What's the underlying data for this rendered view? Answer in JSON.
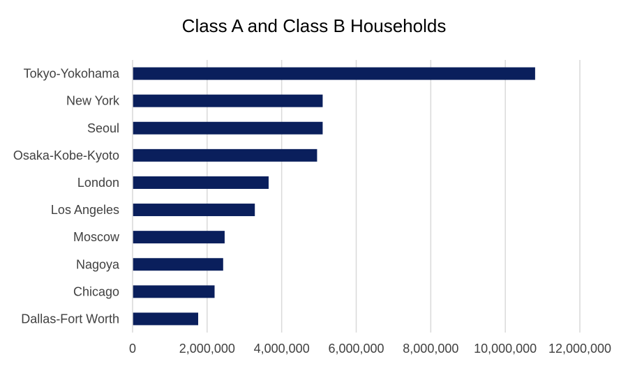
{
  "chart_data": {
    "type": "bar",
    "orientation": "horizontal",
    "title": "Class A and Class B Households",
    "xlabel": "",
    "ylabel": "",
    "categories": [
      "Tokyo-Yokohama",
      "New York",
      "Seoul",
      "Osaka-Kobe-Kyoto",
      "London",
      "Los Angeles",
      "Moscow",
      "Nagoya",
      "Chicago",
      "Dallas-Fort Worth"
    ],
    "values": [
      10800000,
      5100000,
      5100000,
      4950000,
      3650000,
      3280000,
      2470000,
      2430000,
      2200000,
      1760000
    ],
    "xlim": [
      0,
      12000000
    ],
    "ticks": [
      0,
      2000000,
      4000000,
      6000000,
      8000000,
      10000000,
      12000000
    ],
    "tick_labels": [
      "0",
      "2,000,000",
      "4,000,000",
      "6,000,000",
      "8,000,000",
      "10,000,000",
      "12,000,000"
    ],
    "grid": "vertical",
    "legend": "none",
    "bar_color": "#0a1f5c",
    "grid_color": "#d9d9d9"
  }
}
